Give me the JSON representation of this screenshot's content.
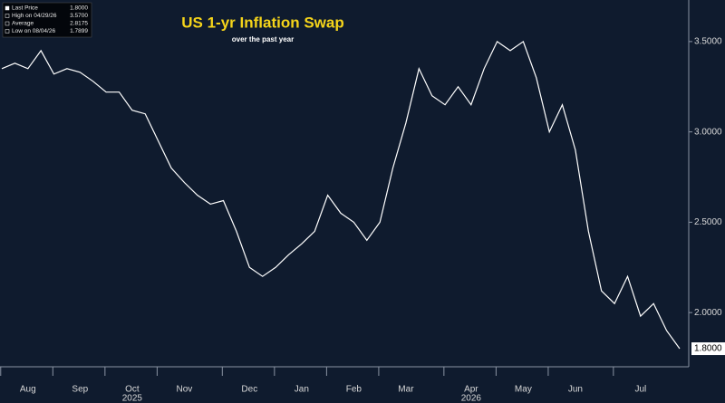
{
  "chart_data": {
    "type": "line",
    "title": "US 1-yr Inflation Swap",
    "subtitle": "over the past year",
    "color": "#ffffff",
    "categories": [
      null,
      null,
      "Aug",
      null,
      null,
      null,
      "Sep",
      null,
      null,
      null,
      "Oct",
      null,
      null,
      null,
      "Nov",
      null,
      null,
      null,
      null,
      "Dec",
      null,
      null,
      null,
      "Jan",
      null,
      null,
      null,
      "Feb",
      null,
      null,
      null,
      "Mar",
      null,
      null,
      null,
      null,
      "Apr",
      null,
      null,
      null,
      "May",
      null,
      null,
      null,
      "Jun",
      null,
      null,
      null,
      null,
      "Jul",
      null,
      null,
      null
    ],
    "year_labels": [
      null,
      null,
      null,
      null,
      null,
      null,
      null,
      null,
      null,
      null,
      "2025",
      null,
      null,
      null,
      null,
      null,
      null,
      null,
      null,
      null,
      null,
      null,
      null,
      null,
      null,
      null,
      null,
      null,
      null,
      null,
      null,
      null,
      null,
      null,
      null,
      null,
      "2026",
      null,
      null,
      null,
      null,
      null,
      null,
      null,
      null,
      null,
      null,
      null,
      null,
      null,
      null,
      null,
      null
    ],
    "values": [
      3.35,
      3.38,
      3.35,
      3.45,
      3.32,
      3.35,
      3.33,
      3.28,
      3.22,
      3.22,
      3.12,
      3.1,
      2.95,
      2.8,
      2.72,
      2.65,
      2.6,
      2.62,
      2.45,
      2.25,
      2.2,
      2.25,
      2.32,
      2.38,
      2.45,
      2.65,
      2.55,
      2.5,
      2.4,
      2.5,
      2.8,
      3.05,
      3.35,
      3.2,
      3.15,
      3.25,
      3.15,
      3.35,
      3.5,
      3.45,
      3.5,
      3.3,
      3.0,
      3.15,
      2.9,
      2.45,
      2.12,
      2.05,
      2.2,
      1.98,
      2.05,
      1.9,
      1.8
    ],
    "ylim": [
      1.7,
      3.73
    ],
    "yticks": [
      {
        "value": 2,
        "label": "2.0000"
      },
      {
        "value": 2.5,
        "label": "2.5000"
      },
      {
        "value": 3,
        "label": "3.0000"
      },
      {
        "value": 3.5,
        "label": "3.5000"
      }
    ],
    "last_price_label": {
      "value": 1.8,
      "label": "1.8000"
    },
    "legend_stats": [
      {
        "label": "Last Price",
        "value": "1.8000"
      },
      {
        "label": "High on 04/29/26",
        "value": "3.5700"
      },
      {
        "label": "Average",
        "value": "2.8175"
      },
      {
        "label": "Low on 08/04/26",
        "value": "1.7899"
      }
    ],
    "grid": false
  }
}
